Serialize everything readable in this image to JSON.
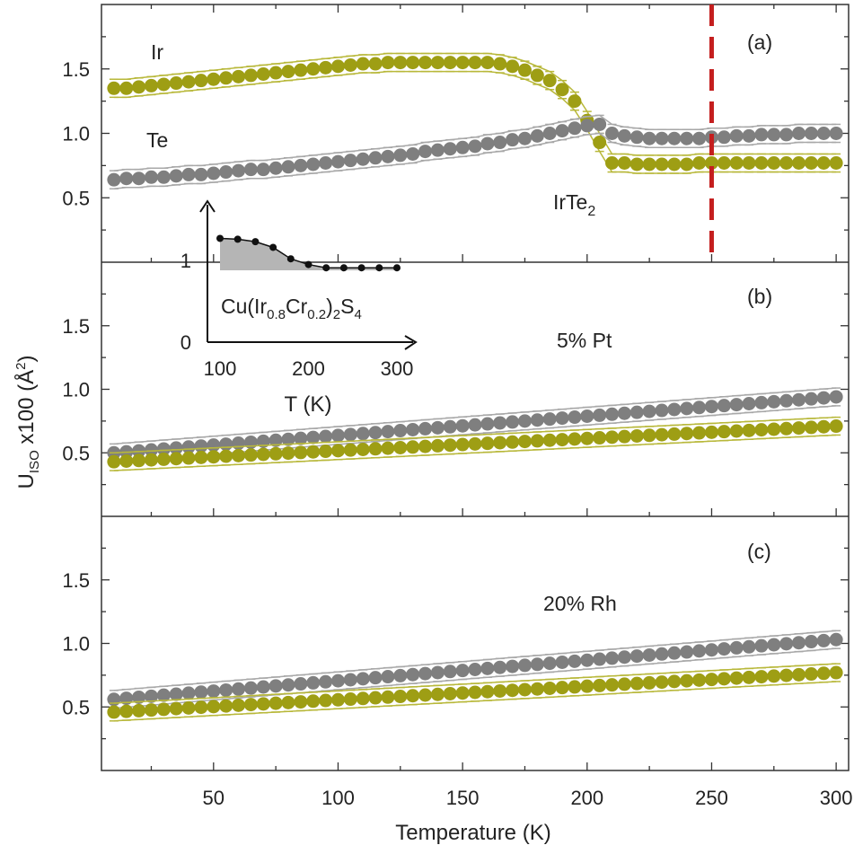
{
  "chart_data": {
    "type": "scatter",
    "xlabel": "Temperature  (K)",
    "ylabel_main": "U",
    "ylabel_sub": "ISO",
    "ylabel_rest": "  x100 (Å",
    "ylabel_sup": "2",
    "ylabel_end": ")",
    "xlim": [
      5,
      305
    ],
    "x_ticks": [
      50,
      100,
      150,
      200,
      250,
      300
    ],
    "y_ticks": [
      0.5,
      1.0,
      1.5
    ],
    "y_tick_labels": [
      "0.5",
      "1.0",
      "1.5"
    ],
    "transition_T": 250,
    "colors": {
      "Ir": "#9e9e14",
      "Te": "#7f7f7f",
      "Ir_edge": "#b8b83a",
      "Te_edge": "#a8a8a8",
      "transition": "#c41e1e"
    },
    "panels": [
      {
        "label": "(a)",
        "ylim": [
          0.0,
          2.0
        ],
        "annotations": {
          "ir_label": "Ir",
          "te_label": "Te",
          "compound": "IrTe",
          "compound_sub": "2"
        },
        "series": [
          {
            "name": "Ir",
            "x_start": 10,
            "x_step": 5,
            "values": [
              1.35,
              1.35,
              1.36,
              1.37,
              1.38,
              1.39,
              1.4,
              1.41,
              1.42,
              1.43,
              1.44,
              1.45,
              1.46,
              1.47,
              1.48,
              1.49,
              1.5,
              1.51,
              1.52,
              1.53,
              1.54,
              1.54,
              1.55,
              1.55,
              1.55,
              1.55,
              1.55,
              1.55,
              1.55,
              1.55,
              1.55,
              1.54,
              1.52,
              1.49,
              1.45,
              1.41,
              1.34,
              1.25,
              1.1,
              0.93,
              0.77,
              0.77,
              0.76,
              0.76,
              0.76,
              0.76,
              0.76,
              0.77,
              0.77,
              0.77,
              0.77,
              0.77,
              0.77,
              0.77,
              0.77,
              0.77,
              0.77,
              0.77,
              0.77
            ],
            "error": 0.07
          },
          {
            "name": "Te",
            "x_start": 10,
            "x_step": 5,
            "values": [
              0.64,
              0.65,
              0.65,
              0.66,
              0.66,
              0.67,
              0.68,
              0.68,
              0.69,
              0.7,
              0.71,
              0.72,
              0.72,
              0.73,
              0.74,
              0.75,
              0.76,
              0.77,
              0.78,
              0.79,
              0.8,
              0.81,
              0.82,
              0.83,
              0.84,
              0.86,
              0.87,
              0.88,
              0.89,
              0.9,
              0.92,
              0.93,
              0.95,
              0.96,
              0.98,
              1.0,
              1.02,
              1.04,
              1.06,
              1.07,
              1.0,
              0.98,
              0.97,
              0.96,
              0.96,
              0.96,
              0.96,
              0.96,
              0.97,
              0.97,
              0.98,
              0.98,
              0.99,
              0.99,
              0.99,
              1.0,
              1.0,
              1.0,
              1.0
            ],
            "error": 0.07
          }
        ]
      },
      {
        "label": "(b)",
        "ylim": [
          0.0,
          2.0
        ],
        "annotations": {
          "composition": "5% Pt"
        },
        "series": [
          {
            "name": "Te",
            "x_start": 10,
            "x_step": 5,
            "linear": [
              0.5,
              0.94
            ],
            "error": 0.07
          },
          {
            "name": "Ir",
            "x_start": 10,
            "x_step": 5,
            "linear": [
              0.43,
              0.71
            ],
            "error": 0.07
          }
        ]
      },
      {
        "label": "(c)",
        "ylim": [
          0.0,
          2.0
        ],
        "annotations": {
          "composition": "20% Rh"
        },
        "series": [
          {
            "name": "Te",
            "x_start": 10,
            "x_step": 5,
            "linear": [
              0.56,
              1.03
            ],
            "error": 0.07
          },
          {
            "name": "Ir",
            "x_start": 10,
            "x_step": 5,
            "linear": [
              0.46,
              0.77
            ],
            "error": 0.07
          }
        ]
      }
    ],
    "inset": {
      "xlabel": "T (K)",
      "x_ticks": [
        100,
        200,
        300
      ],
      "y_ticks": [
        0,
        1
      ],
      "xlim": [
        80,
        310
      ],
      "ylim": [
        0,
        1.55
      ],
      "compound": {
        "a": "Cu(Ir",
        "b": "0.8",
        "c": "Cr",
        "d": "0.2",
        "e": ")",
        "f": "2",
        "g": "S",
        "h": "4"
      },
      "x": [
        100,
        120,
        140,
        160,
        180,
        200,
        220,
        240,
        260,
        280,
        300
      ],
      "y": [
        1.27,
        1.26,
        1.23,
        1.16,
        1.02,
        0.95,
        0.91,
        0.91,
        0.91,
        0.91,
        0.91
      ],
      "shade_baseline": 0.88
    }
  }
}
